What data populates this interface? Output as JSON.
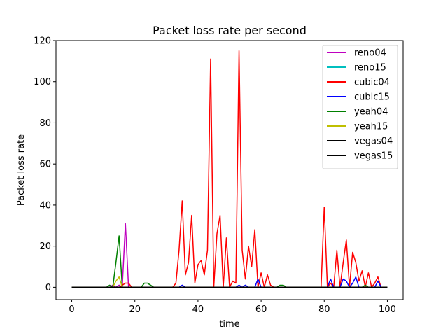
{
  "chart_data": {
    "type": "line",
    "title": "Packet loss rate per second",
    "xlabel": "time",
    "ylabel": "Packet loss rate",
    "xlim": [
      -5,
      105
    ],
    "ylim": [
      -6,
      120
    ],
    "xticks": [
      0,
      20,
      40,
      60,
      80,
      100
    ],
    "yticks": [
      0,
      20,
      40,
      60,
      80,
      100,
      120
    ],
    "legend_position": "top-right",
    "series": [
      {
        "name": "reno04",
        "color": "#bf00bf",
        "points": [
          [
            0,
            0
          ],
          [
            12,
            0
          ],
          [
            13,
            1
          ],
          [
            14,
            0
          ],
          [
            15,
            1
          ],
          [
            16,
            0
          ],
          [
            17,
            31
          ],
          [
            18,
            0
          ],
          [
            100,
            0
          ]
        ]
      },
      {
        "name": "reno15",
        "color": "#00bfbf",
        "points": [
          [
            0,
            0
          ],
          [
            100,
            0
          ]
        ]
      },
      {
        "name": "cubic04",
        "color": "#ff0000",
        "points": [
          [
            0,
            0
          ],
          [
            15,
            0
          ],
          [
            16,
            1
          ],
          [
            17,
            2
          ],
          [
            18,
            2
          ],
          [
            19,
            0
          ],
          [
            32,
            0
          ],
          [
            33,
            2
          ],
          [
            34,
            18
          ],
          [
            35,
            42
          ],
          [
            36,
            6
          ],
          [
            37,
            12
          ],
          [
            38,
            35
          ],
          [
            39,
            2
          ],
          [
            40,
            11
          ],
          [
            41,
            13
          ],
          [
            42,
            6
          ],
          [
            43,
            18
          ],
          [
            44,
            111
          ],
          [
            45,
            0
          ],
          [
            46,
            26
          ],
          [
            47,
            35
          ],
          [
            48,
            0
          ],
          [
            49,
            24
          ],
          [
            50,
            0
          ],
          [
            51,
            3
          ],
          [
            52,
            2
          ],
          [
            53,
            115
          ],
          [
            54,
            18
          ],
          [
            55,
            4
          ],
          [
            56,
            20
          ],
          [
            57,
            10
          ],
          [
            58,
            28
          ],
          [
            59,
            0
          ],
          [
            60,
            7
          ],
          [
            61,
            0
          ],
          [
            62,
            6
          ],
          [
            63,
            1
          ],
          [
            64,
            0
          ],
          [
            79,
            0
          ],
          [
            80,
            39
          ],
          [
            81,
            0
          ],
          [
            82,
            2
          ],
          [
            83,
            0
          ],
          [
            84,
            18
          ],
          [
            85,
            0
          ],
          [
            86,
            12
          ],
          [
            87,
            23
          ],
          [
            88,
            0
          ],
          [
            89,
            17
          ],
          [
            90,
            12
          ],
          [
            91,
            3
          ],
          [
            92,
            8
          ],
          [
            93,
            0
          ],
          [
            94,
            7
          ],
          [
            95,
            0
          ],
          [
            96,
            2
          ],
          [
            97,
            5
          ],
          [
            98,
            0
          ],
          [
            100,
            0
          ]
        ]
      },
      {
        "name": "cubic15",
        "color": "#0000ff",
        "points": [
          [
            0,
            0
          ],
          [
            34,
            0
          ],
          [
            35,
            1
          ],
          [
            36,
            0
          ],
          [
            52,
            0
          ],
          [
            53,
            1
          ],
          [
            54,
            0
          ],
          [
            55,
            1
          ],
          [
            56,
            0
          ],
          [
            58,
            0
          ],
          [
            59,
            4
          ],
          [
            60,
            0
          ],
          [
            81,
            0
          ],
          [
            82,
            4
          ],
          [
            83,
            0
          ],
          [
            85,
            0
          ],
          [
            86,
            4
          ],
          [
            87,
            3
          ],
          [
            88,
            0
          ],
          [
            89,
            2
          ],
          [
            90,
            5
          ],
          [
            91,
            0
          ],
          [
            96,
            0
          ],
          [
            97,
            3
          ],
          [
            98,
            0
          ],
          [
            100,
            0
          ]
        ]
      },
      {
        "name": "yeah04",
        "color": "#008000",
        "points": [
          [
            0,
            0
          ],
          [
            11,
            0
          ],
          [
            12,
            1
          ],
          [
            13,
            0
          ],
          [
            14,
            12
          ],
          [
            15,
            25
          ],
          [
            16,
            0
          ],
          [
            22,
            0
          ],
          [
            23,
            2
          ],
          [
            24,
            2
          ],
          [
            25,
            1
          ],
          [
            26,
            0
          ],
          [
            65,
            0
          ],
          [
            66,
            1
          ],
          [
            67,
            1
          ],
          [
            68,
            0
          ],
          [
            92,
            0
          ],
          [
            93,
            1
          ],
          [
            94,
            0
          ],
          [
            100,
            0
          ]
        ]
      },
      {
        "name": "yeah15",
        "color": "#bfbf00",
        "points": [
          [
            0,
            0
          ],
          [
            13,
            0
          ],
          [
            14,
            3
          ],
          [
            15,
            5
          ],
          [
            16,
            0
          ],
          [
            100,
            0
          ]
        ]
      },
      {
        "name": "vegas04",
        "color": "#000000",
        "points": [
          [
            0,
            0
          ],
          [
            100,
            0
          ]
        ]
      },
      {
        "name": "vegas15",
        "color": "#000000",
        "points": [
          [
            0,
            0
          ],
          [
            100,
            0
          ]
        ]
      }
    ]
  }
}
